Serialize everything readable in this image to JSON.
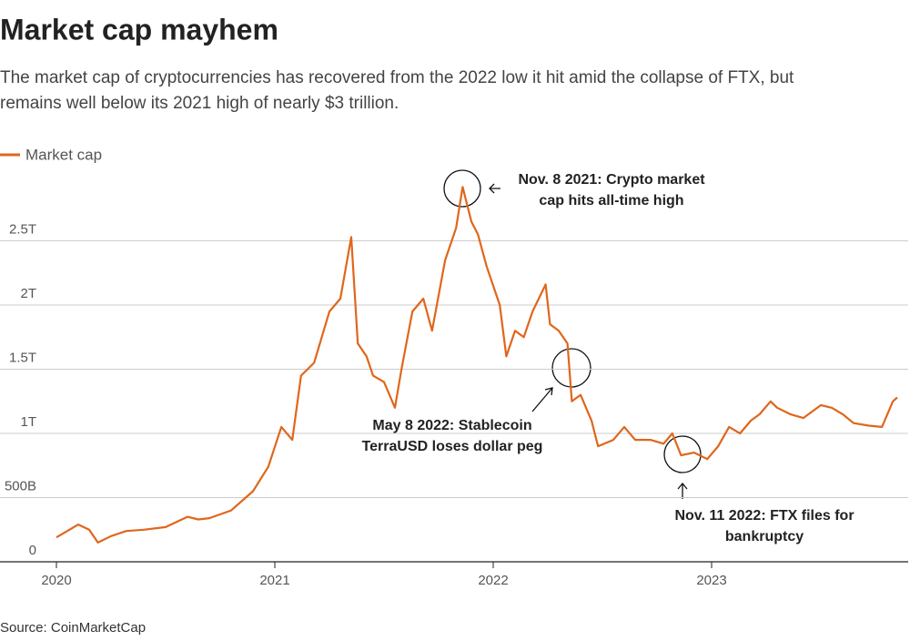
{
  "chart_data": {
    "type": "line",
    "title": "Market cap mayhem",
    "subtitle": [
      "The market cap of cryptocurrencies has recovered from the 2022 low it hit amid the collapse of FTX, but",
      "remains well below its 2021 high of nearly $3 trillion."
    ],
    "source": "Source: CoinMarketCap",
    "x": [
      2020.0,
      2020.05,
      2020.1,
      2020.15,
      2020.19,
      2020.25,
      2020.32,
      2020.4,
      2020.5,
      2020.6,
      2020.65,
      2020.7,
      2020.8,
      2020.9,
      2020.97,
      2021.03,
      2021.08,
      2021.12,
      2021.18,
      2021.25,
      2021.3,
      2021.35,
      2021.38,
      2021.42,
      2021.45,
      2021.5,
      2021.55,
      2021.58,
      2021.63,
      2021.68,
      2021.72,
      2021.78,
      2021.83,
      2021.86,
      2021.9,
      2021.93,
      2021.97,
      2022.03,
      2022.06,
      2022.1,
      2022.14,
      2022.18,
      2022.24,
      2022.26,
      2022.3,
      2022.34,
      2022.36,
      2022.4,
      2022.45,
      2022.48,
      2022.55,
      2022.6,
      2022.65,
      2022.72,
      2022.78,
      2022.82,
      2022.86,
      2022.92,
      2022.98,
      2023.03,
      2023.08,
      2023.13,
      2023.18,
      2023.22,
      2023.27,
      2023.3,
      2023.36,
      2023.42,
      2023.5,
      2023.55,
      2023.6,
      2023.65,
      2023.72,
      2023.78,
      2023.83,
      2023.85
    ],
    "series": [
      {
        "name": "Market cap",
        "color": "#e0661b",
        "values": [
          0.19,
          0.24,
          0.29,
          0.25,
          0.15,
          0.2,
          0.24,
          0.25,
          0.27,
          0.35,
          0.33,
          0.34,
          0.4,
          0.55,
          0.74,
          1.05,
          0.95,
          1.45,
          1.55,
          1.95,
          2.05,
          2.53,
          1.7,
          1.6,
          1.45,
          1.4,
          1.2,
          1.5,
          1.95,
          2.05,
          1.8,
          2.35,
          2.6,
          2.92,
          2.65,
          2.55,
          2.3,
          2.0,
          1.6,
          1.8,
          1.75,
          1.95,
          2.16,
          1.85,
          1.8,
          1.7,
          1.25,
          1.3,
          1.1,
          0.9,
          0.95,
          1.05,
          0.95,
          0.95,
          0.92,
          1.0,
          0.83,
          0.85,
          0.8,
          0.9,
          1.05,
          1.0,
          1.1,
          1.15,
          1.25,
          1.2,
          1.15,
          1.12,
          1.22,
          1.2,
          1.15,
          1.08,
          1.06,
          1.05,
          1.25,
          1.28
        ]
      }
    ],
    "xlim": [
      2020,
      2023.9
    ],
    "xticks": [
      2020,
      2021,
      2022,
      2023
    ],
    "ylim": [
      0,
      3
    ],
    "yticks": [
      0,
      {
        "value": 0.5,
        "label": "500B"
      },
      {
        "value": 1,
        "label": "1T"
      },
      {
        "value": 1.5,
        "label": "1.5T"
      },
      {
        "value": 2,
        "label": "2T"
      },
      {
        "value": 2.5,
        "label": "2.5T"
      }
    ],
    "grid": true,
    "legend": "top-left",
    "annotations": [
      {
        "text": [
          "Nov. 8 2021: Crypto market",
          "cap hits all-time high"
        ]
      },
      {
        "text": [
          "May 8 2022: Stablecoin",
          "TerraUSD loses dollar peg"
        ]
      },
      {
        "text": [
          "Nov. 11 2022: FTX files for",
          "bankruptcy"
        ]
      }
    ]
  }
}
